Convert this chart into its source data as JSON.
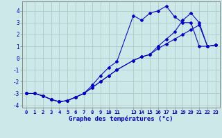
{
  "xlabel": "Graphe des températures (°c)",
  "bg_color": "#cce8e8",
  "grid_color": "#b0c8c8",
  "line_color": "#0000cc",
  "hours": [
    0,
    1,
    2,
    3,
    4,
    5,
    6,
    7,
    8,
    9,
    10,
    11,
    13,
    14,
    15,
    16,
    17,
    18,
    19,
    20,
    21,
    22,
    23
  ],
  "line1": [
    -3.0,
    -3.0,
    -3.2,
    -3.5,
    -3.7,
    -3.6,
    -3.3,
    -3.0,
    -2.3,
    -1.5,
    -0.8,
    -0.3,
    3.6,
    3.2,
    3.8,
    4.0,
    4.4,
    3.5,
    3.0,
    3.0,
    1.0,
    1.0,
    1.1
  ],
  "line2": [
    -3.0,
    -3.0,
    -3.2,
    -3.5,
    -3.7,
    -3.6,
    -3.3,
    -3.0,
    -2.5,
    -2.0,
    -1.5,
    -1.0,
    -0.2,
    0.1,
    0.3,
    1.0,
    1.6,
    2.2,
    3.2,
    3.8,
    3.0,
    1.0,
    1.1
  ],
  "line3": [
    -3.0,
    -3.0,
    -3.2,
    -3.5,
    -3.7,
    -3.6,
    -3.3,
    -3.0,
    -2.5,
    -2.0,
    -1.5,
    -1.0,
    -0.2,
    0.1,
    0.3,
    0.8,
    1.2,
    1.6,
    2.0,
    2.4,
    2.8,
    1.0,
    1.1
  ],
  "ylim": [
    -4.2,
    4.8
  ],
  "yticks": [
    -4,
    -3,
    -2,
    -1,
    0,
    1,
    2,
    3,
    4
  ],
  "xticks": [
    0,
    1,
    2,
    3,
    4,
    5,
    6,
    7,
    8,
    9,
    10,
    11,
    13,
    14,
    15,
    16,
    17,
    18,
    19,
    20,
    21,
    22,
    23
  ]
}
